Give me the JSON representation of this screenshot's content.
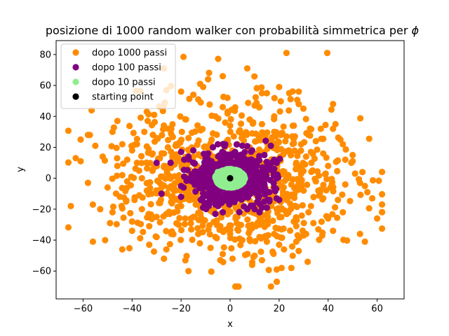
{
  "chart_data": {
    "type": "scatter",
    "title": "posizione di 1000 random walker con probabilità simmetrica per ",
    "title_symbol": "ϕ",
    "xlabel": "x",
    "ylabel": "y",
    "xlim": [
      -71,
      71
    ],
    "ylim": [
      -78,
      89
    ],
    "xticks": [
      -60,
      -40,
      -20,
      0,
      20,
      40,
      60
    ],
    "yticks": [
      -60,
      -40,
      -20,
      0,
      20,
      40,
      60,
      80
    ],
    "grid": false,
    "legend_position": "top-left",
    "series": [
      {
        "name": "dopo 1000 passi",
        "color": "#ff8c00",
        "distribution": {
          "sigma_x": 22,
          "sigma_y": 24,
          "count": 1000,
          "seed": 7
        },
        "points": [
          [
            23,
            81
          ],
          [
            7,
            71
          ],
          [
            -27,
            71
          ],
          [
            -3,
            66
          ],
          [
            -9,
            64
          ],
          [
            -11,
            59
          ],
          [
            -26,
            57
          ],
          [
            -20,
            56
          ],
          [
            -15,
            54
          ],
          [
            13,
            55
          ],
          [
            15,
            55
          ],
          [
            -13,
            51
          ],
          [
            -12,
            49
          ],
          [
            -3,
            46
          ],
          [
            -1,
            43
          ],
          [
            28,
            48
          ],
          [
            28,
            56
          ],
          [
            20,
            59
          ],
          [
            10,
            47
          ],
          [
            42,
            48
          ],
          [
            -27,
            47
          ],
          [
            -34,
            43
          ],
          [
            -46,
            37
          ],
          [
            -31,
            41
          ],
          [
            -58,
            28
          ],
          [
            -61,
            25
          ],
          [
            -55,
            21
          ],
          [
            -61,
            11
          ],
          [
            -63,
            13
          ],
          [
            -58,
            -3
          ],
          [
            -53,
            -20
          ],
          [
            -65,
            -18
          ],
          [
            -56,
            -17
          ],
          [
            -56,
            -41
          ],
          [
            -51,
            -40
          ],
          [
            -49,
            -29
          ],
          [
            -44,
            -46
          ],
          [
            -40,
            -28
          ],
          [
            -33,
            -43
          ],
          [
            -33,
            -31
          ],
          [
            -30,
            -38
          ],
          [
            -26,
            -46
          ],
          [
            -27,
            -52
          ],
          [
            -24,
            -36
          ],
          [
            -17,
            -60
          ],
          [
            -8,
            -45
          ],
          [
            -4,
            -53
          ],
          [
            -3,
            -49
          ],
          [
            1,
            -52
          ],
          [
            3,
            -70
          ],
          [
            9,
            -56
          ],
          [
            13,
            -53
          ],
          [
            19,
            -59
          ],
          [
            21,
            -58
          ],
          [
            25,
            -58
          ],
          [
            28,
            -47
          ],
          [
            30,
            -37
          ],
          [
            36,
            -33
          ],
          [
            40,
            -26
          ],
          [
            46,
            -22
          ],
          [
            55,
            -41
          ],
          [
            53,
            -36
          ],
          [
            56,
            -9
          ],
          [
            55,
            -5
          ],
          [
            60,
            -26
          ],
          [
            58,
            -13
          ],
          [
            51,
            3
          ],
          [
            54,
            4
          ],
          [
            53,
            -3
          ],
          [
            50,
            11
          ],
          [
            50,
            15
          ],
          [
            47,
            12
          ],
          [
            45,
            25
          ],
          [
            42,
            32
          ],
          [
            43,
            35
          ],
          [
            37,
            32
          ],
          [
            35,
            24
          ],
          [
            33,
            17
          ],
          [
            39,
            3
          ],
          [
            41,
            -6
          ],
          [
            38,
            -13
          ],
          [
            34,
            -29
          ],
          [
            31,
            -36
          ],
          [
            27,
            -41
          ],
          [
            22,
            -46
          ],
          [
            20,
            -43
          ],
          [
            18,
            -36
          ],
          [
            15,
            -41
          ],
          [
            12,
            -38
          ],
          [
            9,
            -30
          ],
          [
            3,
            -33
          ],
          [
            -4,
            -31
          ],
          [
            -11,
            -28
          ],
          [
            -16,
            -26
          ],
          [
            -21,
            -30
          ],
          [
            -25,
            -22
          ],
          [
            -29,
            -16
          ],
          [
            -34,
            -8
          ],
          [
            -36,
            0
          ],
          [
            -31,
            7
          ],
          [
            -27,
            16
          ],
          [
            -22,
            22
          ],
          [
            -17,
            26
          ],
          [
            -12,
            31
          ],
          [
            -7,
            29
          ],
          [
            -2,
            36
          ],
          [
            4,
            31
          ],
          [
            9,
            29
          ],
          [
            13,
            35
          ],
          [
            18,
            30
          ],
          [
            23,
            27
          ],
          [
            29,
            22
          ],
          [
            31,
            14
          ],
          [
            28,
            6
          ],
          [
            25,
            -4
          ],
          [
            22,
            -12
          ],
          [
            19,
            -20
          ],
          [
            14,
            -24
          ],
          [
            9,
            -22
          ],
          [
            3,
            -25
          ],
          [
            -2,
            -22
          ],
          [
            -8,
            -21
          ],
          [
            -14,
            -17
          ],
          [
            -18,
            -9
          ],
          [
            -21,
            -1
          ],
          [
            -19,
            8
          ],
          [
            -15,
            14
          ],
          [
            -9,
            19
          ],
          [
            -3,
            22
          ],
          [
            3,
            22
          ],
          [
            8,
            20
          ],
          [
            14,
            17
          ],
          [
            19,
            12
          ],
          [
            22,
            4
          ],
          [
            21,
            -5
          ],
          [
            17,
            -13
          ],
          [
            -45,
            -12
          ],
          [
            -42,
            12
          ],
          [
            -38,
            22
          ],
          [
            -48,
            -22
          ],
          [
            -44,
            2
          ],
          [
            -39,
            -14
          ],
          [
            -35,
            30
          ],
          [
            -30,
            -25
          ],
          [
            -40,
            18
          ],
          [
            -46,
            8
          ],
          [
            -36,
            -20
          ],
          [
            -42,
            -2
          ],
          [
            36,
            -8
          ],
          [
            40,
            8
          ],
          [
            44,
            -14
          ],
          [
            33,
            -18
          ],
          [
            38,
            16
          ],
          [
            47,
            -4
          ],
          [
            32,
            28
          ],
          [
            26,
            34
          ],
          [
            18,
            40
          ],
          [
            8,
            38
          ],
          [
            -6,
            40
          ],
          [
            -18,
            38
          ],
          [
            -24,
            32
          ],
          [
            -30,
            26
          ],
          [
            -38,
            10
          ],
          [
            -50,
            -6
          ],
          [
            -52,
            14
          ],
          [
            -48,
            30
          ],
          [
            -32,
            -10
          ],
          [
            -28,
            -4
          ],
          [
            -26,
            6
          ],
          [
            -24,
            -12
          ],
          [
            -22,
            14
          ],
          [
            -20,
            -18
          ],
          [
            -13,
            -36
          ],
          [
            -6,
            -38
          ],
          [
            5,
            -40
          ],
          [
            12,
            -30
          ],
          [
            26,
            -28
          ],
          [
            32,
            -22
          ],
          [
            35,
            -2
          ],
          [
            30,
            -8
          ],
          [
            27,
            10
          ],
          [
            24,
            18
          ],
          [
            -10,
            10
          ],
          [
            -12,
            -8
          ],
          [
            11,
            -10
          ],
          [
            10,
            8
          ],
          [
            -4,
            -14
          ],
          [
            4,
            14
          ],
          [
            -40,
            -34
          ],
          [
            -44,
            22
          ],
          [
            42,
            -34
          ],
          [
            46,
            22
          ],
          [
            0,
            34
          ],
          [
            0,
            -36
          ]
        ]
      },
      {
        "name": "dopo 100 passi",
        "color": "#800080",
        "distribution": {
          "sigma_x": 7,
          "sigma_y": 7,
          "count": 1000,
          "seed": 11
        },
        "points": [
          [
            -20,
            17
          ],
          [
            -20,
            -5
          ],
          [
            -20,
            -12
          ],
          [
            -19,
            -6
          ],
          [
            -30,
            10
          ],
          [
            -28,
            -10
          ],
          [
            19,
            10
          ],
          [
            19,
            -13
          ],
          [
            20,
            -14
          ],
          [
            18,
            12
          ],
          [
            16,
            -15
          ],
          [
            15,
            -19
          ],
          [
            13,
            -19
          ],
          [
            12,
            -22
          ],
          [
            7,
            -20
          ],
          [
            -6,
            -17
          ],
          [
            -6,
            -23
          ],
          [
            -3,
            -22
          ],
          [
            10,
            -20
          ],
          [
            -12,
            -14
          ],
          [
            -11,
            -19
          ],
          [
            -10,
            13
          ],
          [
            -9,
            16
          ],
          [
            -7,
            20
          ],
          [
            -5,
            22
          ],
          [
            -2,
            22
          ],
          [
            5,
            21
          ],
          [
            9,
            18
          ],
          [
            14,
            15
          ],
          [
            17,
            10
          ],
          [
            18,
            6
          ],
          [
            19,
            0
          ],
          [
            18,
            -6
          ],
          [
            16,
            -9
          ],
          [
            -17,
            14
          ],
          [
            -15,
            18
          ]
        ]
      },
      {
        "name": "dopo 10 passi",
        "color": "#90ee90",
        "distribution": {
          "radius": 6,
          "count": 1000,
          "seed": 3
        },
        "points": [
          [
            -5,
            4
          ],
          [
            -6,
            1
          ],
          [
            -5,
            -3
          ],
          [
            -3,
            -5
          ],
          [
            0,
            -6
          ],
          [
            3,
            -5
          ],
          [
            5,
            -3
          ],
          [
            6,
            0
          ],
          [
            5,
            3
          ],
          [
            3,
            5
          ],
          [
            0,
            6
          ],
          [
            -3,
            5
          ],
          [
            -2,
            3
          ],
          [
            2,
            3
          ],
          [
            3,
            -1
          ],
          [
            -2,
            -2
          ],
          [
            0,
            2
          ],
          [
            1,
            -3
          ],
          [
            -4,
            0
          ],
          [
            4,
            1
          ],
          [
            -1,
            -4
          ],
          [
            2,
            4
          ],
          [
            -3,
            2
          ],
          [
            3,
            -3
          ],
          [
            0,
            0
          ],
          [
            -5,
            -1
          ],
          [
            5,
            -1
          ],
          [
            -1,
            5
          ],
          [
            1,
            -5
          ],
          [
            -4,
            -4
          ]
        ]
      },
      {
        "name": "starting point",
        "color": "#000000",
        "points": [
          [
            0,
            0
          ]
        ]
      }
    ]
  }
}
